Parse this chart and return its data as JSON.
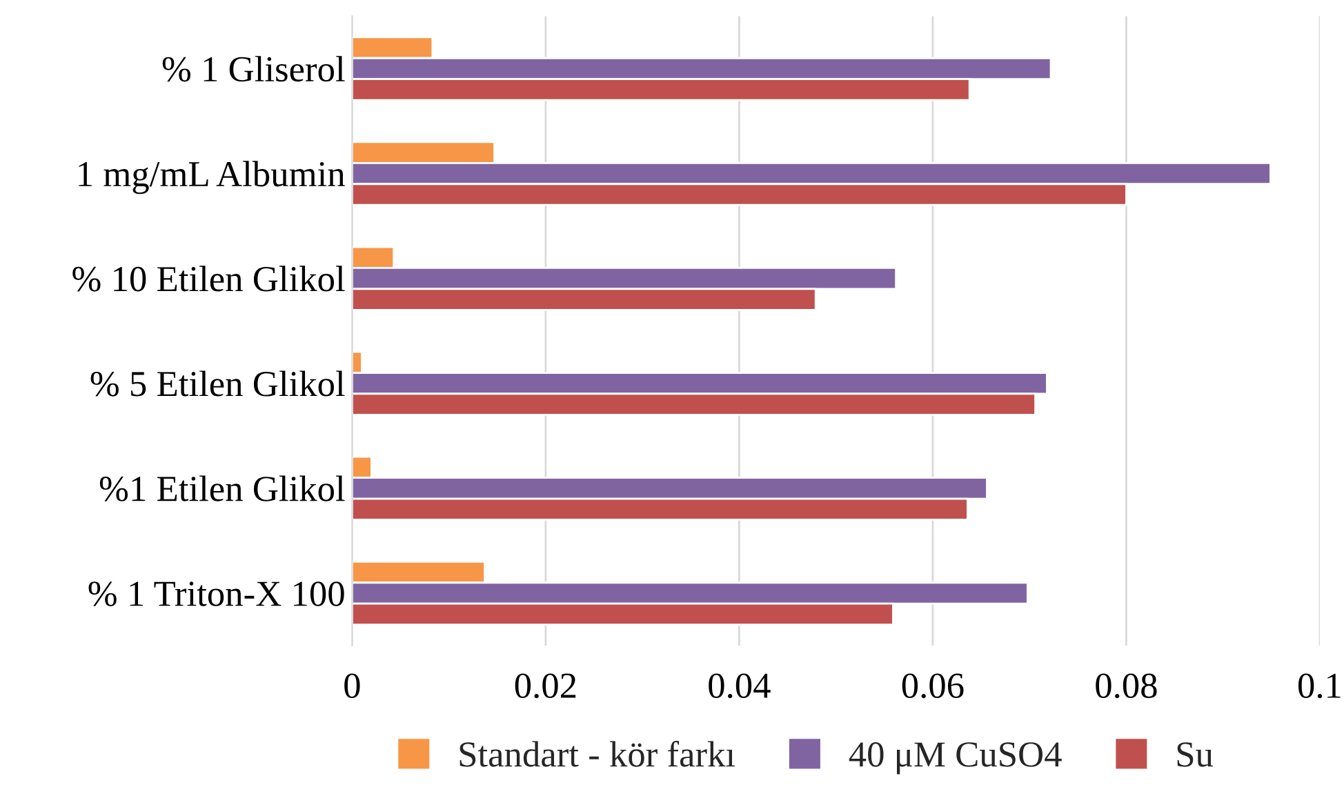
{
  "chart_data": {
    "type": "bar",
    "orientation": "horizontal",
    "categories": [
      "% 1 Gliserol",
      "1 mg/mL Albumin",
      "% 10 Etilen Glikol",
      "% 5 Etilen Glikol",
      "%1 Etilen Glikol",
      "% 1 Triton-X 100"
    ],
    "series": [
      {
        "name": "Standart - kör farkı",
        "color": "#f79646",
        "values": [
          0.0083,
          0.0147,
          0.0043,
          0.001,
          0.002,
          0.0137
        ]
      },
      {
        "name": "40 μM CuSO4",
        "color": "#8064a2",
        "values": [
          0.0722,
          0.0949,
          0.0562,
          0.0718,
          0.0656,
          0.0698
        ]
      },
      {
        "name": "Su",
        "color": "#c0504d",
        "values": [
          0.0638,
          0.08,
          0.0479,
          0.0706,
          0.0636,
          0.0559
        ]
      }
    ],
    "xlim": [
      0,
      0.1
    ],
    "xticks": [
      0,
      0.02,
      0.04,
      0.06,
      0.08,
      0.1
    ],
    "grid": "x",
    "legend": "bottom"
  }
}
